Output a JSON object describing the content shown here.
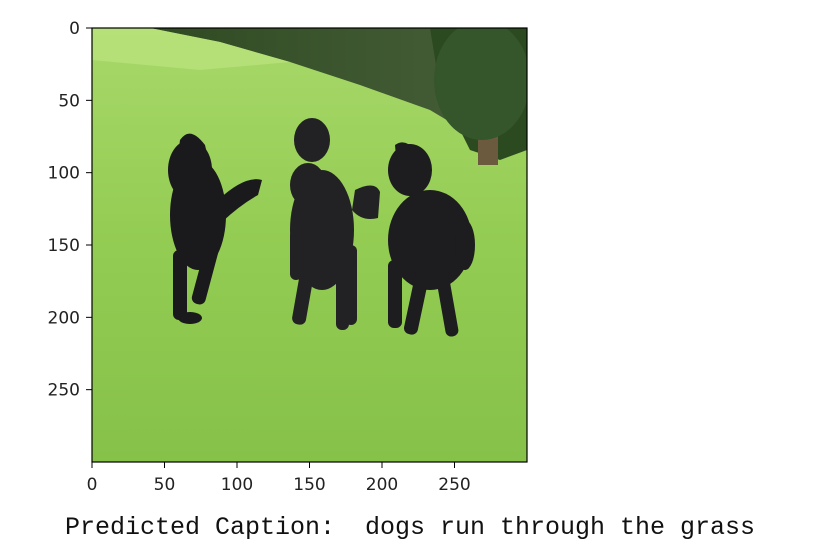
{
  "figure": {
    "image_description_icon": "photo-three-black-dogs-running-on-grass",
    "x_axis": {
      "ticks": [
        "0",
        "50",
        "100",
        "150",
        "200",
        "250"
      ],
      "tick_values": [
        0,
        50,
        100,
        150,
        200,
        250
      ],
      "range": [
        0,
        299
      ]
    },
    "y_axis": {
      "ticks": [
        "0",
        "50",
        "100",
        "150",
        "200",
        "250"
      ],
      "tick_values": [
        0,
        50,
        100,
        150,
        200,
        250
      ],
      "range": [
        0,
        299
      ],
      "inverted": true
    }
  },
  "caption": {
    "text": "Predicted Caption:  dogs run through the grass"
  }
}
